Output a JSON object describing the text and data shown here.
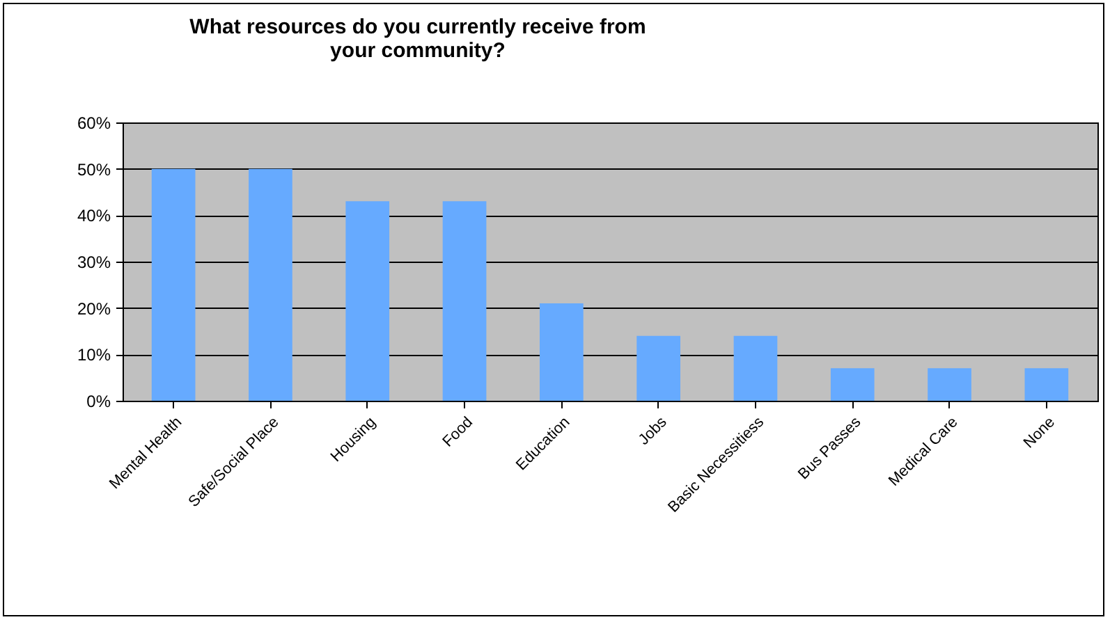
{
  "chart_data": {
    "type": "bar",
    "title": "What resources do you currently receive from your community?",
    "categories": [
      "Mental Health",
      "Safe/Social Place",
      "Housing",
      "Food",
      "Education",
      "Jobs",
      "Basic Necessitiess",
      "Bus Passes",
      "Medical Care",
      "None"
    ],
    "values": [
      50,
      50,
      43,
      43,
      21,
      14,
      14,
      7,
      7,
      7
    ],
    "color": "#66aaff",
    "ylim": [
      0,
      60
    ],
    "yticks": [
      {
        "value": 0,
        "label": "0%"
      },
      {
        "value": 10,
        "label": "10%"
      },
      {
        "value": 20,
        "label": "20%"
      },
      {
        "value": 30,
        "label": "30%"
      },
      {
        "value": 40,
        "label": "40%"
      },
      {
        "value": 50,
        "label": "50%"
      },
      {
        "value": 60,
        "label": "60%"
      }
    ],
    "grid": "y"
  }
}
